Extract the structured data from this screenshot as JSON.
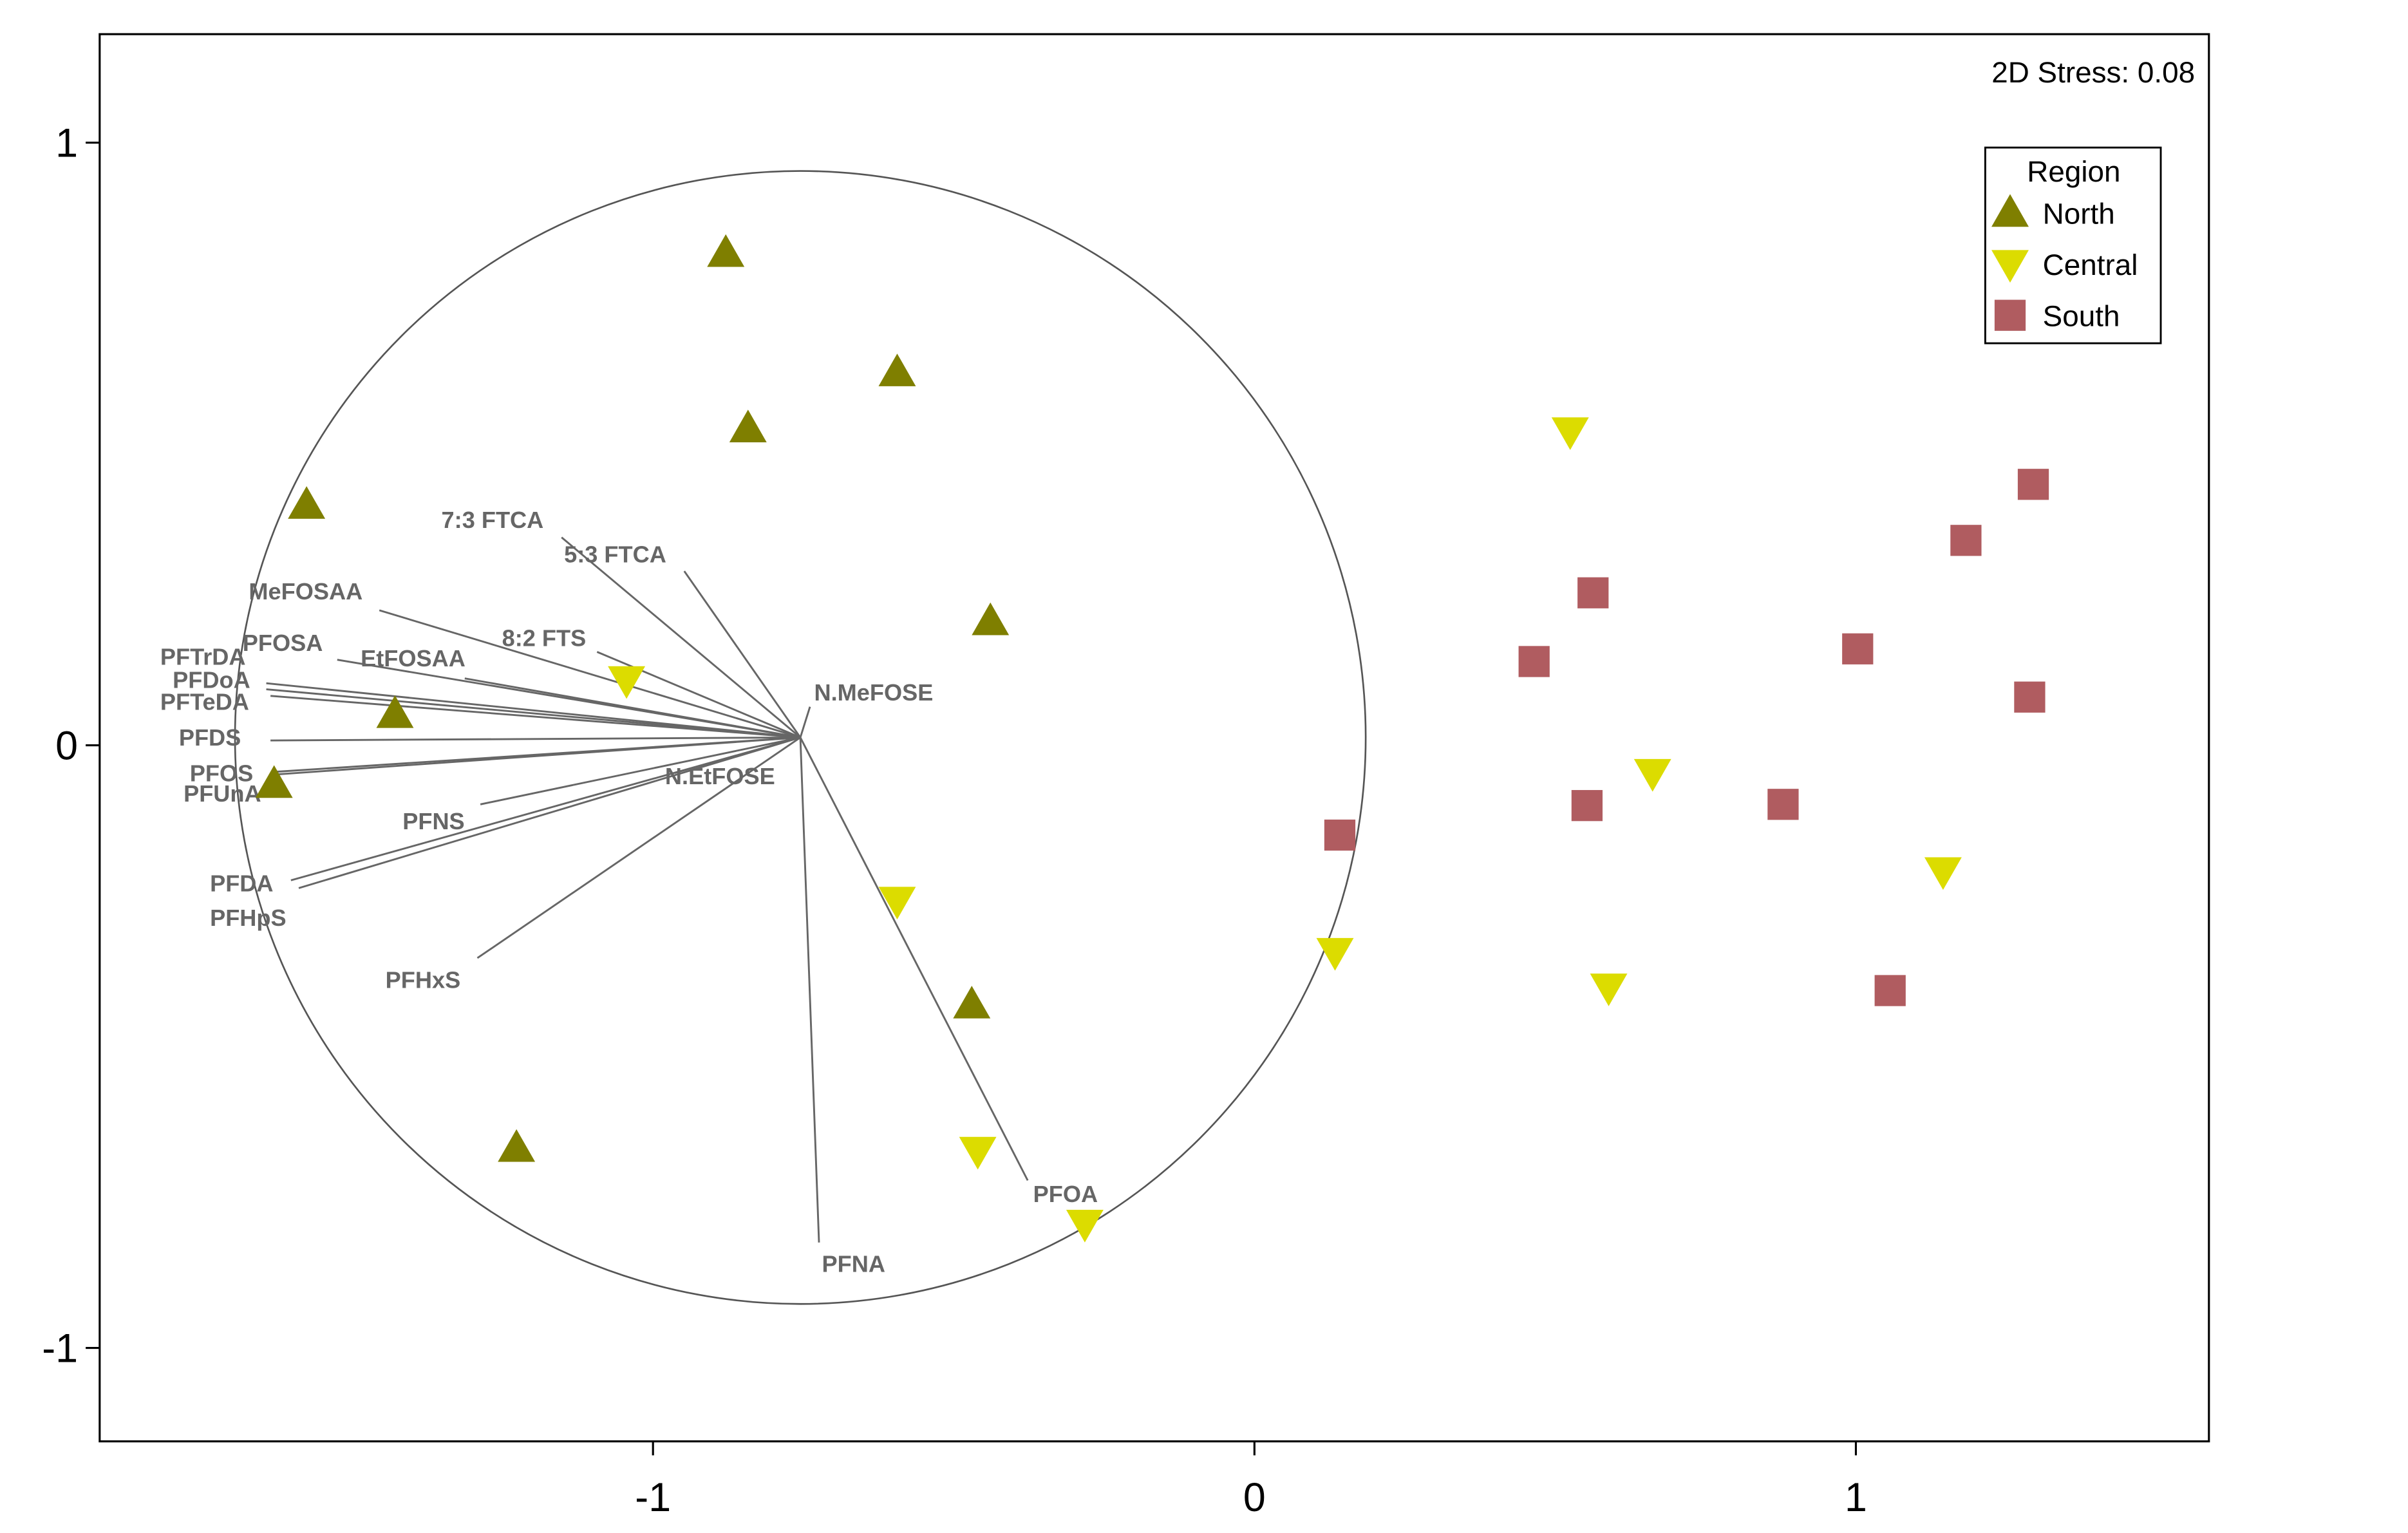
{
  "chart_data": {
    "type": "scatter",
    "annotation": "2D Stress: 0.08",
    "xlim": [
      -1.92,
      1.587
    ],
    "ylim": [
      -1.155,
      1.18
    ],
    "x_ticks": [
      -1,
      0,
      1
    ],
    "y_ticks": [
      -1,
      0,
      1
    ],
    "x_tick_labels": [
      "-1",
      "0",
      "1"
    ],
    "y_tick_labels": [
      "-1",
      "0",
      "1"
    ],
    "grid": false,
    "legend": {
      "title": "Region",
      "placement": "top-right"
    },
    "colors": {
      "North": "#7f7f00",
      "Central": "#dcdc00",
      "South": "#b05c60",
      "vector": "#666666"
    },
    "series": [
      {
        "name": "North",
        "marker": "triangle-up",
        "points": [
          [
            -0.879,
            0.817
          ],
          [
            -0.594,
            0.619
          ],
          [
            -0.842,
            0.526
          ],
          [
            -1.576,
            0.399
          ],
          [
            -0.439,
            0.206
          ],
          [
            -1.429,
            0.052
          ],
          [
            -1.63,
            -0.064
          ],
          [
            -0.47,
            -0.43
          ],
          [
            -1.227,
            -0.668
          ]
        ]
      },
      {
        "name": "Central",
        "marker": "triangle-down",
        "points": [
          [
            0.525,
            0.521
          ],
          [
            -1.044,
            0.108
          ],
          [
            0.662,
            -0.046
          ],
          [
            -0.594,
            -0.258
          ],
          [
            1.145,
            -0.209
          ],
          [
            0.134,
            -0.343
          ],
          [
            0.589,
            -0.402
          ],
          [
            -0.46,
            -0.673
          ],
          [
            -0.282,
            -0.794
          ]
        ]
      },
      {
        "name": "South",
        "marker": "square",
        "points": [
          [
            1.295,
            0.433
          ],
          [
            1.183,
            0.34
          ],
          [
            0.563,
            0.253
          ],
          [
            0.465,
            0.139
          ],
          [
            1.003,
            0.16
          ],
          [
            1.289,
            0.08
          ],
          [
            0.553,
            -0.1
          ],
          [
            0.879,
            -0.098
          ],
          [
            0.142,
            -0.149
          ],
          [
            1.057,
            -0.407
          ]
        ]
      }
    ],
    "correlation_circle": {
      "center": [
        -0.755,
        0.013
      ],
      "radius": 0.94
    },
    "vectors": [
      {
        "label": "7:3 FTCA",
        "end": [
          -1.152,
          0.345
        ]
      },
      {
        "label": "5:3 FTCA",
        "end": [
          -0.948,
          0.289
        ]
      },
      {
        "label": "MeFOSAA",
        "end": [
          -1.455,
          0.224
        ]
      },
      {
        "label": "8:2 FTS",
        "end": [
          -1.093,
          0.155
        ]
      },
      {
        "label": "PFOSA",
        "end": [
          -1.525,
          0.142
        ]
      },
      {
        "label": "EtFOSAA",
        "end": [
          -1.313,
          0.111
        ]
      },
      {
        "label": "PFTrDA",
        "end": [
          -1.643,
          0.103
        ]
      },
      {
        "label": "PFDoA",
        "end": [
          -1.643,
          0.093
        ]
      },
      {
        "label": "PFTeDA",
        "end": [
          -1.636,
          0.082
        ]
      },
      {
        "label": "PFDS",
        "end": [
          -1.636,
          0.008
        ]
      },
      {
        "label": "PFOS",
        "end": [
          -1.636,
          -0.049
        ]
      },
      {
        "label": "PFUnA",
        "end": [
          -1.628,
          -0.044
        ]
      },
      {
        "label": "PFNS",
        "end": [
          -1.287,
          -0.098
        ]
      },
      {
        "label": "PFDA",
        "end": [
          -1.602,
          -0.224
        ]
      },
      {
        "label": "PFHpS",
        "end": [
          -1.589,
          -0.237
        ]
      },
      {
        "label": "PFHxS",
        "end": [
          -1.292,
          -0.353
        ]
      },
      {
        "label": "N.EtFOSE",
        "end": [
          -0.964,
          -0.046
        ]
      },
      {
        "label": "N.MeFOSE",
        "end": [
          -0.739,
          0.064
        ]
      },
      {
        "label": "PFNA",
        "end": [
          -0.724,
          -0.825
        ]
      },
      {
        "label": "PFOA",
        "end": [
          -0.377,
          -0.722
        ]
      }
    ]
  }
}
